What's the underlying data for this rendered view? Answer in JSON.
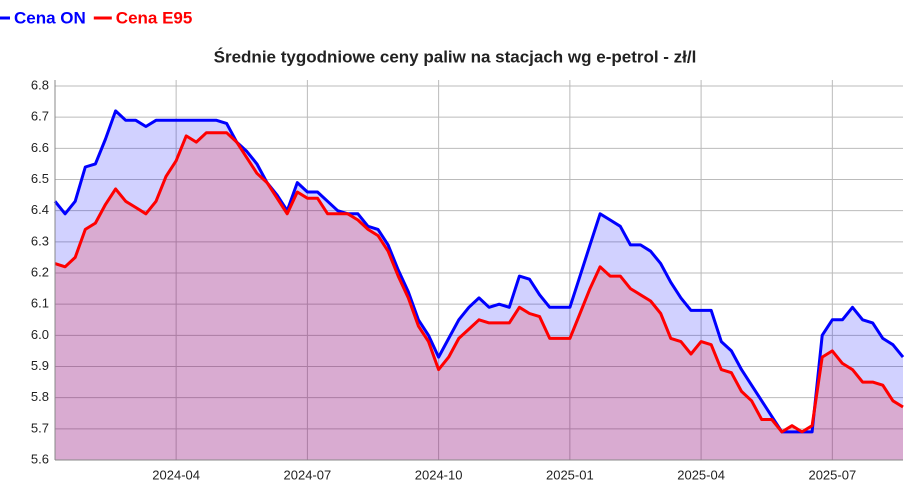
{
  "chart_data": {
    "type": "area",
    "title": "Średnie tygodniowe ceny paliw na stacjach wg e-petrol - zł/l",
    "categories": [
      null,
      null,
      null,
      null,
      null,
      null,
      null,
      null,
      null,
      null,
      null,
      null,
      "2024-04",
      null,
      null,
      null,
      null,
      null,
      null,
      null,
      null,
      null,
      null,
      null,
      null,
      "2024-07",
      null,
      null,
      null,
      null,
      null,
      null,
      null,
      null,
      null,
      null,
      null,
      null,
      "2024-10",
      null,
      null,
      null,
      null,
      null,
      null,
      null,
      null,
      null,
      null,
      null,
      null,
      "2025-01",
      null,
      null,
      null,
      null,
      null,
      null,
      null,
      null,
      null,
      null,
      null,
      null,
      "2025-04",
      null,
      null,
      null,
      null,
      null,
      null,
      null,
      null,
      null,
      null,
      null,
      null,
      "2025-07",
      null,
      null,
      null,
      null,
      null,
      null,
      null
    ],
    "series": [
      {
        "name": "Cena ON",
        "color": "#0000ff",
        "values": [
          6.43,
          6.39,
          6.43,
          6.54,
          6.55,
          6.63,
          6.72,
          6.69,
          6.69,
          6.67,
          6.69,
          6.69,
          6.69,
          6.69,
          6.69,
          6.69,
          6.69,
          6.68,
          6.62,
          6.59,
          6.55,
          6.49,
          6.45,
          6.4,
          6.49,
          6.46,
          6.46,
          6.43,
          6.4,
          6.39,
          6.39,
          6.35,
          6.34,
          6.29,
          6.21,
          6.14,
          6.05,
          6.0,
          5.93,
          5.99,
          6.05,
          6.09,
          6.12,
          6.09,
          6.1,
          6.09,
          6.19,
          6.18,
          6.13,
          6.09,
          6.09,
          6.09,
          6.19,
          6.29,
          6.39,
          6.37,
          6.35,
          6.29,
          6.29,
          6.27,
          6.23,
          6.17,
          6.12,
          6.08,
          6.08,
          6.08,
          5.98,
          5.95,
          5.89,
          5.84,
          5.79,
          5.74,
          5.69,
          5.69,
          5.69,
          5.69,
          6.0,
          6.05,
          6.05,
          6.09,
          6.05,
          6.04,
          5.99,
          5.97,
          5.93
        ]
      },
      {
        "name": "Cena E95",
        "color": "#ff0000",
        "values": [
          6.23,
          6.22,
          6.25,
          6.34,
          6.36,
          6.42,
          6.47,
          6.43,
          6.41,
          6.39,
          6.43,
          6.51,
          6.56,
          6.64,
          6.62,
          6.65,
          6.65,
          6.65,
          6.62,
          6.57,
          6.52,
          6.49,
          6.44,
          6.39,
          6.46,
          6.44,
          6.44,
          6.39,
          6.39,
          6.39,
          6.37,
          6.34,
          6.32,
          6.27,
          6.19,
          6.12,
          6.03,
          5.98,
          5.89,
          5.93,
          5.99,
          6.02,
          6.05,
          6.04,
          6.04,
          6.04,
          6.09,
          6.07,
          6.06,
          5.99,
          5.99,
          5.99,
          6.07,
          6.15,
          6.22,
          6.19,
          6.19,
          6.15,
          6.13,
          6.11,
          6.07,
          5.99,
          5.98,
          5.94,
          5.98,
          5.97,
          5.89,
          5.88,
          5.82,
          5.79,
          5.73,
          5.73,
          5.69,
          5.71,
          5.69,
          5.71,
          5.93,
          5.95,
          5.91,
          5.89,
          5.85,
          5.85,
          5.84,
          5.79,
          5.77
        ]
      }
    ],
    "ylim": [
      5.6,
      6.8
    ],
    "yticks": [
      5.6,
      5.7,
      5.8,
      5.9,
      {
        "value": 6.0,
        "label": "6.0"
      },
      6.1,
      6.2,
      6.3,
      6.4,
      6.5,
      6.6,
      6.7,
      6.8
    ],
    "grid": true,
    "legend": "top-left"
  }
}
